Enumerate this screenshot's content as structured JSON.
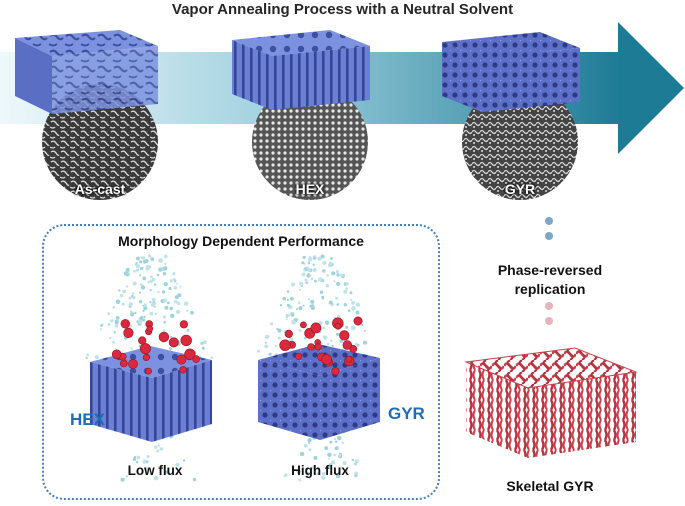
{
  "title": "Vapor Annealing Process with a Neutral Solvent",
  "stages": [
    {
      "label": "As-cast"
    },
    {
      "label": "HEX"
    },
    {
      "label": "GYR"
    }
  ],
  "panel": {
    "title": "Morphology Dependent Performance",
    "left_label": "HEX",
    "right_label": "GYR",
    "left_caption": "Low flux",
    "right_caption": "High flux"
  },
  "replication": {
    "line1": "Phase-reversed",
    "line2": "replication",
    "result_label": "Skeletal GYR"
  },
  "colors": {
    "arrow_light": "#dff0f6",
    "arrow_dark": "#1e7b96",
    "membrane_blue": "#6f86d6",
    "skeletal_red": "#c8414c",
    "label_blue": "#1f6db5",
    "panel_border": "#4a7fb5",
    "dot_blue": "#7ea7c6",
    "dot_pink": "#e7b3bc"
  }
}
